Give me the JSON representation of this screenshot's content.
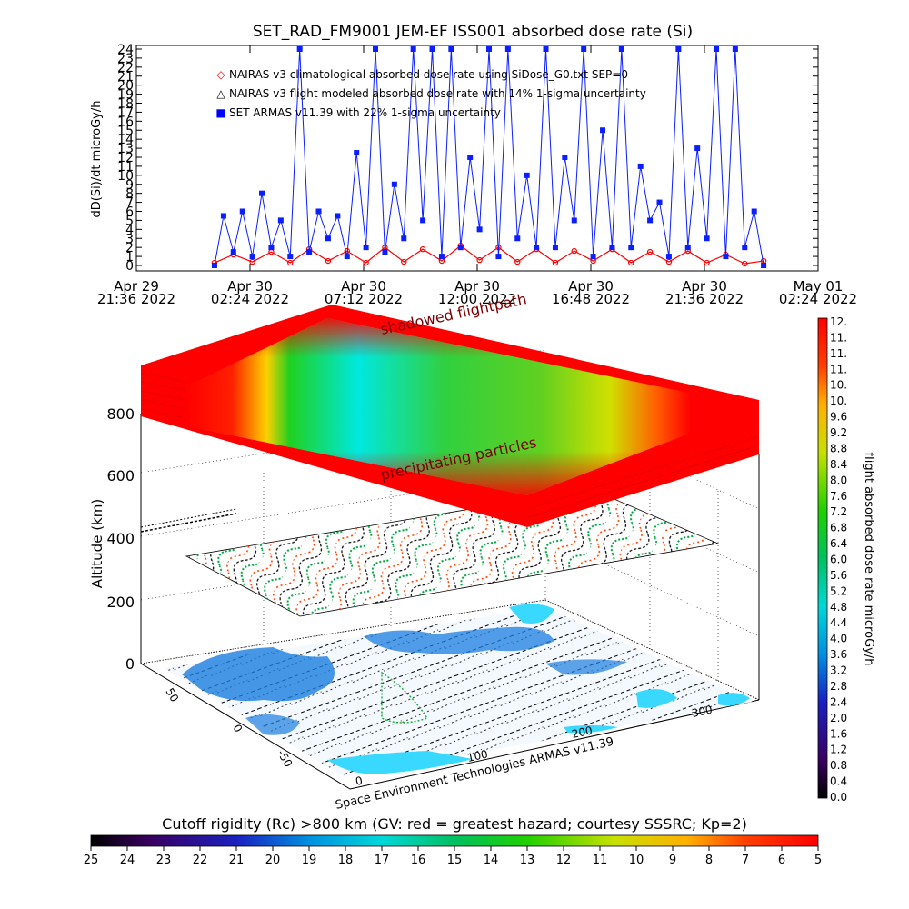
{
  "chart_data": [
    {
      "type": "line",
      "title": "SET_RAD_FM9001  JEM-EF ISS001 absorbed dose rate (Si)",
      "ylabel": "dD(Si)/dt microGy/h",
      "ylim": [
        0,
        24
      ],
      "yticks": [
        "0",
        "1",
        "2",
        "3",
        "4",
        "5",
        "6",
        "7",
        "8",
        "9",
        "10",
        "11",
        "12",
        "13",
        "14",
        "15",
        "16",
        "17",
        "18",
        "19",
        "20",
        "21",
        "22",
        "23",
        "24"
      ],
      "xlim": [
        "2022-04-29T21:36",
        "2022-05-01T02:24"
      ],
      "xticks": [
        {
          "d": "Apr 29",
          "t": "21:36 2022"
        },
        {
          "d": "Apr 30",
          "t": "02:24 2022"
        },
        {
          "d": "Apr 30",
          "t": "07:12 2022"
        },
        {
          "d": "Apr 30",
          "t": "12:00 2022"
        },
        {
          "d": "Apr 30",
          "t": "16:48 2022"
        },
        {
          "d": "Apr 30",
          "t": "21:36 2022"
        },
        {
          "d": "May 01",
          "t": "02:24 2022"
        }
      ],
      "legend": [
        {
          "symbol": "◇",
          "color": "#ff0000",
          "text": "NAIRAS v3 climatological absorbed dose rate using SiDose_G0.txt SEP=0"
        },
        {
          "symbol": "△",
          "color": "#000000",
          "text": "NAIRAS v3 flight modeled absorbed dose rate with 14% 1-sigma uncertainty"
        },
        {
          "symbol": "■",
          "color": "#0000ff",
          "text": "SET ARMAS v11.39 with 22% 1-sigma uncertainty"
        }
      ],
      "series": [
        {
          "name": "SET ARMAS v11.39 with 22% 1-sigma uncertainty",
          "color": "#0a1eff",
          "x": [
            "2022-04-30T00:54",
            "2022-04-30T01:17",
            "2022-04-30T01:42",
            "2022-04-30T02:05",
            "2022-04-30T02:30",
            "2022-04-30T02:54",
            "2022-04-30T03:18",
            "2022-04-30T03:42",
            "2022-04-30T04:06",
            "2022-04-30T04:30",
            "2022-04-30T04:54",
            "2022-04-30T05:18",
            "2022-04-30T05:42",
            "2022-04-30T06:06",
            "2022-04-30T06:30",
            "2022-04-30T06:54",
            "2022-04-30T07:18",
            "2022-04-30T07:42",
            "2022-04-30T08:06",
            "2022-04-30T08:30",
            "2022-04-30T08:54",
            "2022-04-30T09:18",
            "2022-04-30T09:42",
            "2022-04-30T10:06",
            "2022-04-30T10:30",
            "2022-04-30T10:54",
            "2022-04-30T11:18",
            "2022-04-30T11:42",
            "2022-04-30T12:06",
            "2022-04-30T12:30",
            "2022-04-30T12:54",
            "2022-04-30T13:18",
            "2022-04-30T13:42",
            "2022-04-30T14:06",
            "2022-04-30T14:30",
            "2022-04-30T14:54",
            "2022-04-30T15:18",
            "2022-04-30T15:42",
            "2022-04-30T16:06",
            "2022-04-30T16:30",
            "2022-04-30T16:54",
            "2022-04-30T17:18",
            "2022-04-30T17:42",
            "2022-04-30T18:06",
            "2022-04-30T18:30",
            "2022-04-30T18:54",
            "2022-04-30T19:18",
            "2022-04-30T19:42",
            "2022-04-30T20:06",
            "2022-04-30T20:30",
            "2022-04-30T20:54",
            "2022-04-30T21:18",
            "2022-04-30T21:42",
            "2022-04-30T22:06",
            "2022-04-30T22:30",
            "2022-04-30T22:54",
            "2022-04-30T23:18",
            "2022-04-30T23:42",
            "2022-05-01T00:06"
          ],
          "y": [
            0,
            5.5,
            1.5,
            6,
            1,
            8,
            2,
            5,
            1,
            24,
            1.5,
            6,
            3,
            5.5,
            1,
            12.5,
            2,
            24,
            1.5,
            9,
            3,
            24,
            5,
            24,
            1,
            24,
            2,
            12,
            4,
            24,
            1,
            24,
            3,
            10,
            2,
            24,
            2,
            12,
            5,
            24,
            1,
            15,
            2,
            24,
            2,
            11,
            5,
            7,
            1,
            24,
            2,
            13,
            3,
            24,
            1,
            24,
            2,
            6,
            0
          ]
        },
        {
          "name": "NAIRAS v3 climatological absorbed dose rate using SiDose_G0.txt SEP=0",
          "color": "#ff0000",
          "x": [
            "2022-04-30T00:54",
            "2022-04-30T01:42",
            "2022-04-30T02:30",
            "2022-04-30T03:18",
            "2022-04-30T04:06",
            "2022-04-30T04:54",
            "2022-04-30T05:42",
            "2022-04-30T06:30",
            "2022-04-30T07:18",
            "2022-04-30T08:06",
            "2022-04-30T08:54",
            "2022-04-30T09:42",
            "2022-04-30T10:30",
            "2022-04-30T11:18",
            "2022-04-30T12:06",
            "2022-04-30T12:54",
            "2022-04-30T13:42",
            "2022-04-30T14:30",
            "2022-04-30T15:18",
            "2022-04-30T16:06",
            "2022-04-30T16:54",
            "2022-04-30T17:42",
            "2022-04-30T18:30",
            "2022-04-30T19:18",
            "2022-04-30T20:06",
            "2022-04-30T20:54",
            "2022-04-30T21:42",
            "2022-04-30T22:30",
            "2022-04-30T23:18",
            "2022-05-01T00:06"
          ],
          "y": [
            0.3,
            1.2,
            0.4,
            1.5,
            0.3,
            1.8,
            0.5,
            1.6,
            0.3,
            2.0,
            0.4,
            1.8,
            0.5,
            2.2,
            0.6,
            2.0,
            0.4,
            1.8,
            0.3,
            1.6,
            0.5,
            1.8,
            0.3,
            1.5,
            0.4,
            1.6,
            0.3,
            1.2,
            0.2,
            0.5
          ]
        }
      ]
    },
    {
      "type": "heatmap",
      "zlabel": "Altitude (km)",
      "zticks": [
        "0",
        "200",
        "400",
        "600",
        "800"
      ],
      "xticks": [
        "100",
        "200",
        "300"
      ],
      "yticks": [
        "50",
        "0",
        "-50"
      ],
      "annotations": [
        "shadowed flightpath",
        "precipitating particles"
      ],
      "credit": "Space Environment Technologies ARMAS v11.39",
      "colorbar": {
        "label": "flight absorbed dose rate microGy/h",
        "ticks": [
          "0.0",
          "0.4",
          "0.8",
          "1.2",
          "1.6",
          "2.0",
          "2.4",
          "2.8",
          "3.2",
          "3.6",
          "4.0",
          "4.4",
          "4.8",
          "5.2",
          "5.6",
          "6.0",
          "6.4",
          "6.8",
          "7.2",
          "7.6",
          "8.0",
          "8.4",
          "8.8",
          "9.2",
          "9.6",
          "10.",
          "10.",
          "11.",
          "11.",
          "11.",
          "12."
        ]
      }
    },
    {
      "type": "heatmap",
      "colorbar": {
        "label": "Cutoff rigidity (Rc) >800 km (GV: red = greatest hazard; courtesy SSSRC; Kp=2)",
        "ticks": [
          "25",
          "24",
          "23",
          "22",
          "21",
          "20",
          "19",
          "18",
          "17",
          "16",
          "15",
          "14",
          "13",
          "12",
          "11",
          "10",
          "9",
          "8",
          "7",
          "6",
          "5"
        ]
      }
    }
  ]
}
